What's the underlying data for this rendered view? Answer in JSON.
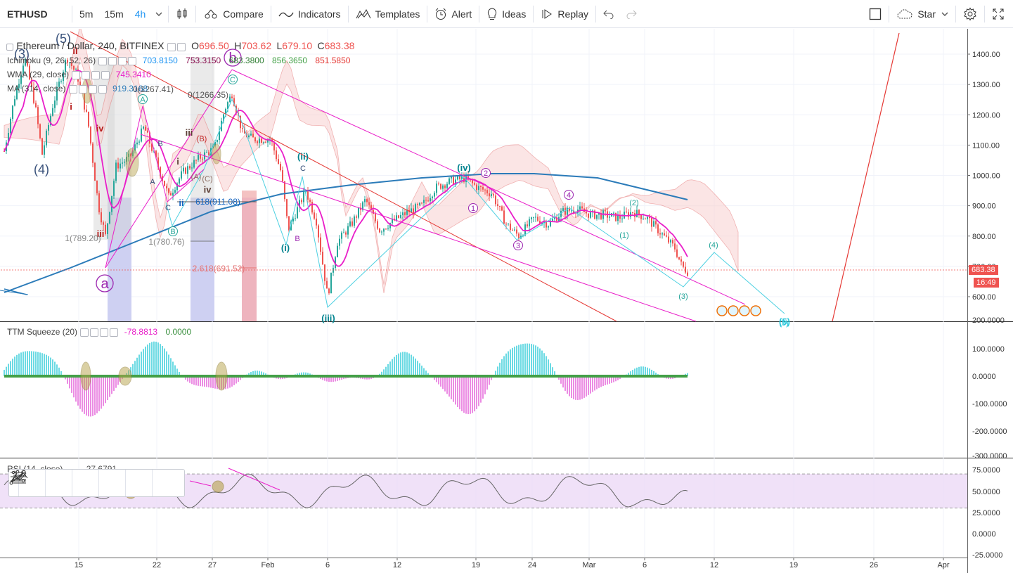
{
  "toolbar": {
    "symbol": "ETHUSD",
    "intervals": [
      "5m",
      "15m",
      "4h"
    ],
    "active_interval": "4h",
    "compare": "Compare",
    "indicators": "Indicators",
    "templates": "Templates",
    "alert": "Alert",
    "ideas": "Ideas",
    "replay": "Replay",
    "star": "Star"
  },
  "legend": {
    "title": "Ethereum / Dollar, 240, BITFINEX",
    "open_label": "O",
    "open": "696.50",
    "high_label": "H",
    "high": "703.62",
    "low_label": "L",
    "low": "679.10",
    "close_label": "C",
    "close": "683.38",
    "ichimoku_name": "Ichimoku (9, 26, 52, 26)",
    "ichimoku_values": [
      "703.8150",
      "753.3150",
      "683.3800",
      "856.3650",
      "851.5850"
    ],
    "wma_name": "WMA (29, close)",
    "wma_value": "745.3410",
    "ma_name": "MA (314, close)",
    "ma_value": "919.3168"
  },
  "price_axis": {
    "labels": [
      "1400.00",
      "1300.00",
      "1200.00",
      "1100.00",
      "1000.00",
      "900.00",
      "800.00",
      "700.00",
      "600.00"
    ],
    "last_price": "683.38",
    "countdown": "16:49"
  },
  "time_axis": {
    "labels": [
      "15",
      "22",
      "27",
      "Feb",
      "6",
      "12",
      "19",
      "24",
      "Mar",
      "6",
      "12",
      "19",
      "26",
      "Apr"
    ]
  },
  "ttm": {
    "name": "TTM Squeeze (20)",
    "value1": "-78.8813",
    "value2": "0.0000",
    "axis": [
      "200.0000",
      "100.0000",
      "0.0000",
      "-100.0000",
      "-200.0000",
      "-300.0000"
    ]
  },
  "rsi": {
    "name": "RSI (14, close)",
    "value": "27.6791",
    "axis": [
      "75.0000",
      "50.0000",
      "25.0000",
      "0.0000",
      "-25.0000"
    ]
  },
  "annotations": {
    "waves_main": [
      "(3)",
      "(4)",
      "(5)",
      "a",
      "b"
    ],
    "waves_minor": [
      "ii",
      "i",
      "iv",
      "iii",
      "iii",
      "i",
      "ii",
      "iv",
      "(ii)",
      "(i)",
      "(iii)",
      "(iv)",
      "(5)"
    ],
    "fib_labels": [
      "1(789.20)",
      "1(780.76)",
      "0(1266.35)",
      "0(1267.41)",
      "618(911.08)",
      "2.618(691.52)"
    ],
    "circle_labels": [
      "1",
      "2",
      "3",
      "4",
      "(1)",
      "(2)",
      "(3)",
      "(4)",
      "(5)",
      "A",
      "B",
      "C"
    ],
    "abc": [
      "A",
      "B",
      "C",
      "(A)",
      "(B)",
      "(C)"
    ]
  },
  "colors": {
    "up": "#26a69a",
    "down": "#ef5350",
    "wma": "#e91ec9",
    "ma": "#2b7bb9",
    "price_tag": "#ef5350",
    "rsi_band": "#e9d4f5",
    "ttm_pos": "#5bd6e0",
    "ttm_neg": "#e97fe0"
  }
}
